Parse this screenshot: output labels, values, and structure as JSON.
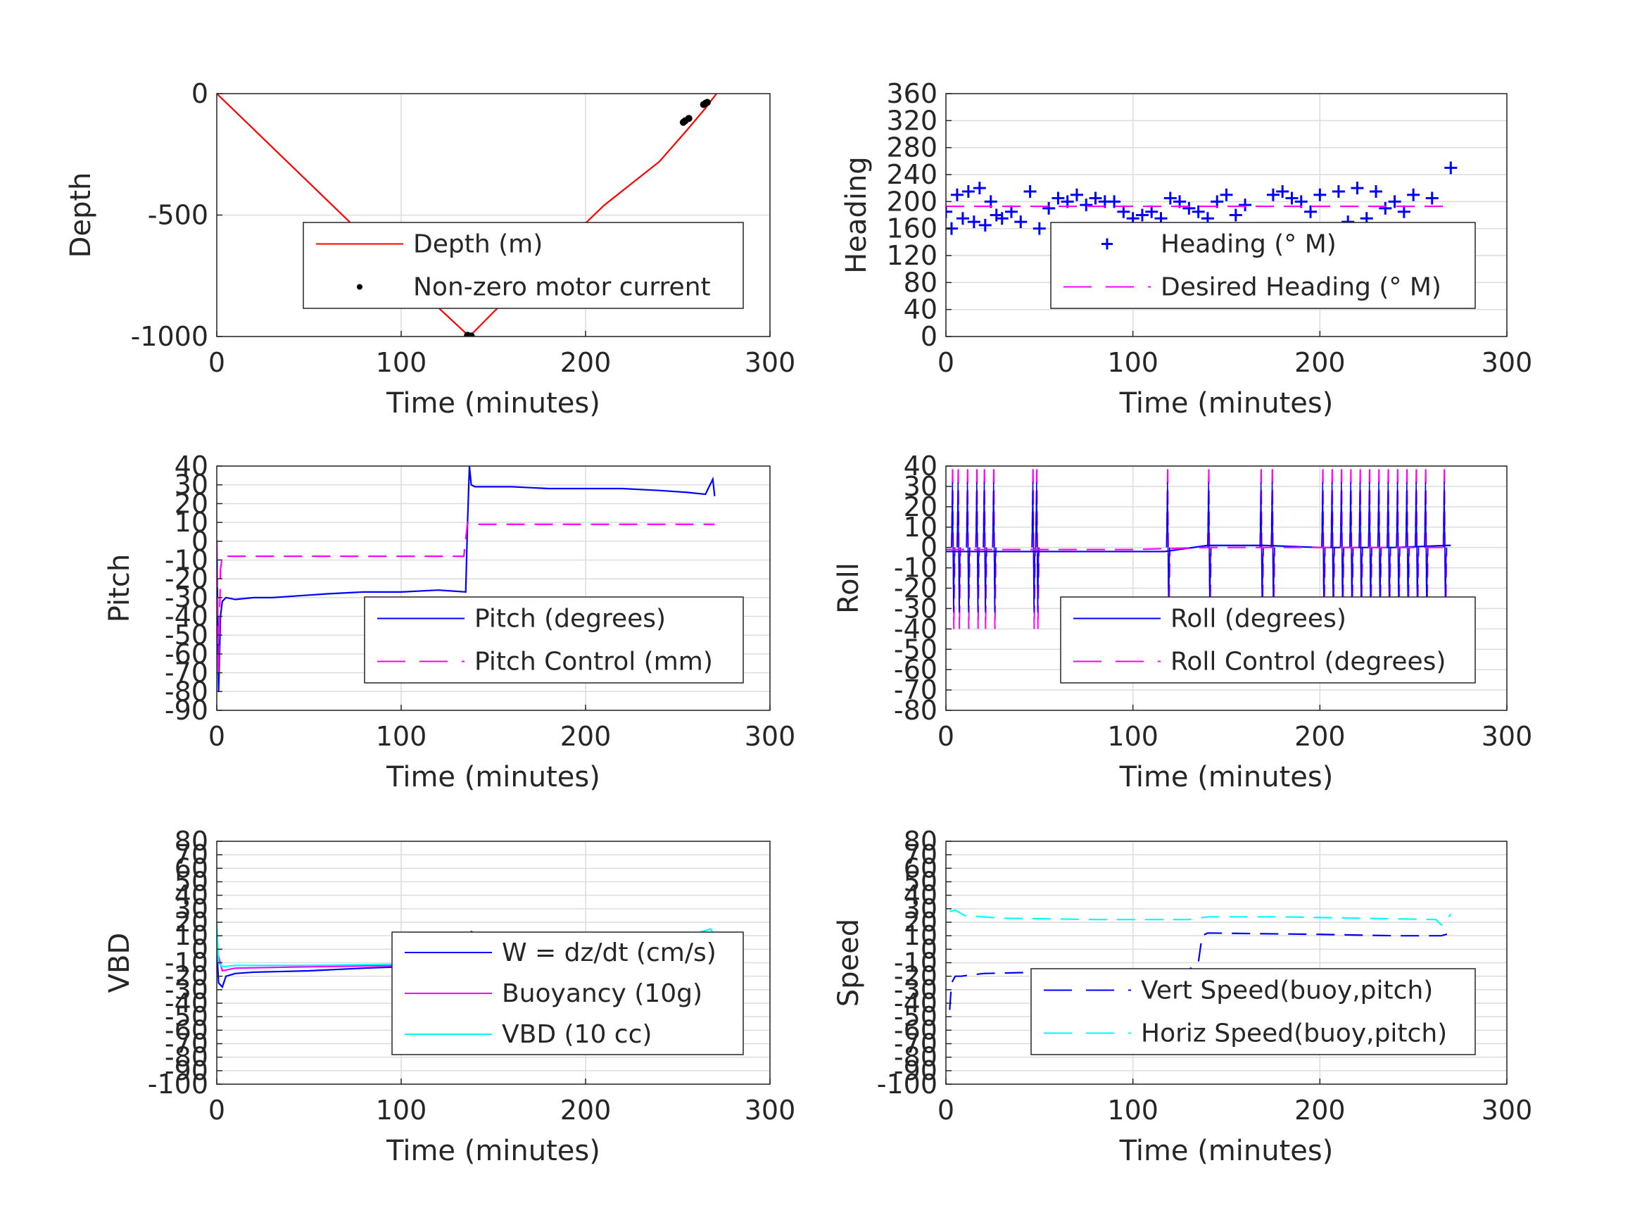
{
  "chart_data": [
    {
      "id": "depth",
      "type": "line",
      "xlabel": "Time (minutes)",
      "ylabel": "Depth",
      "xlim": [
        0,
        300
      ],
      "ylim": [
        -1000,
        0
      ],
      "xticks": [
        0,
        100,
        200,
        300
      ],
      "yticks": [
        -1000,
        -500,
        0
      ],
      "grid": true,
      "legend_position": "center-right",
      "series": [
        {
          "name": "Depth (m)",
          "style": "solid",
          "color": "#ff0000",
          "x": [
            0,
            30,
            60,
            90,
            120,
            137,
            150,
            180,
            210,
            240,
            255,
            265,
            271
          ],
          "y": [
            0,
            -220,
            -440,
            -660,
            -880,
            -1000,
            -900,
            -680,
            -460,
            -280,
            -150,
            -60,
            0
          ]
        },
        {
          "name": "Non-zero motor current",
          "style": "dots",
          "color": "#000000",
          "x": [
            136,
            137,
            138,
            253,
            254,
            256,
            264,
            265,
            266
          ],
          "y": [
            -995,
            -1000,
            -998,
            -118,
            -112,
            -102,
            -45,
            -40,
            -36
          ]
        }
      ]
    },
    {
      "id": "heading",
      "type": "scatter",
      "xlabel": "Time (minutes)",
      "ylabel": "Heading",
      "xlim": [
        0,
        300
      ],
      "ylim": [
        0,
        360
      ],
      "xticks": [
        0,
        100,
        200,
        300
      ],
      "yticks": [
        0,
        40,
        80,
        120,
        160,
        200,
        240,
        280,
        320,
        360
      ],
      "grid": true,
      "legend_position": "center-right",
      "series": [
        {
          "name": "Heading (° M)",
          "style": "plus",
          "color": "#0000ff",
          "x": [
            0,
            3,
            6,
            9,
            12,
            15,
            18,
            21,
            24,
            27,
            30,
            35,
            40,
            45,
            50,
            55,
            60,
            65,
            70,
            75,
            80,
            85,
            90,
            95,
            100,
            105,
            110,
            115,
            120,
            125,
            130,
            135,
            140,
            145,
            150,
            155,
            160,
            165,
            170,
            172,
            175,
            180,
            185,
            190,
            195,
            200,
            205,
            210,
            215,
            220,
            225,
            230,
            235,
            240,
            245,
            250,
            255,
            260,
            265,
            270
          ],
          "y": [
            185,
            160,
            210,
            175,
            215,
            170,
            220,
            165,
            200,
            180,
            175,
            185,
            170,
            215,
            160,
            190,
            205,
            200,
            210,
            195,
            205,
            200,
            200,
            185,
            175,
            180,
            185,
            175,
            205,
            200,
            190,
            185,
            175,
            200,
            210,
            180,
            195,
            160,
            140,
            120,
            210,
            215,
            205,
            200,
            185,
            210,
            160,
            215,
            170,
            220,
            175,
            215,
            190,
            200,
            185,
            210,
            150,
            205,
            160,
            250
          ]
        },
        {
          "name": "Desired Heading (° M)",
          "style": "dashed",
          "color": "#ff00ff",
          "x": [
            0,
            270
          ],
          "y": [
            193,
            193
          ]
        }
      ]
    },
    {
      "id": "pitch",
      "type": "line",
      "xlabel": "Time (minutes)",
      "ylabel": "Pitch",
      "xlim": [
        0,
        300
      ],
      "ylim": [
        -90,
        40
      ],
      "xticks": [
        0,
        100,
        200,
        300
      ],
      "yticks": [
        -90,
        -80,
        -70,
        -60,
        -50,
        -40,
        -30,
        -20,
        -10,
        0,
        10,
        20,
        30,
        40
      ],
      "grid": true,
      "legend_position": "lower-right",
      "series": [
        {
          "name": "Pitch (degrees)",
          "style": "solid",
          "color": "#0000ff",
          "x": [
            0,
            1,
            2,
            3,
            5,
            10,
            20,
            30,
            45,
            60,
            80,
            100,
            120,
            135,
            136,
            137,
            138,
            140,
            160,
            180,
            200,
            220,
            240,
            255,
            265,
            269,
            270
          ],
          "y": [
            0,
            -80,
            -40,
            -32,
            -30,
            -31,
            -30,
            -30,
            -29,
            -28,
            -27,
            -27,
            -26,
            -27,
            10,
            40,
            30,
            29,
            29,
            28,
            28,
            28,
            27,
            26,
            25,
            33,
            24
          ]
        },
        {
          "name": "Pitch Control (mm)",
          "style": "dashed",
          "color": "#ff00ff",
          "x": [
            0,
            1,
            2,
            3,
            10,
            50,
            100,
            134,
            136,
            138,
            150,
            200,
            250,
            270
          ],
          "y": [
            0,
            -70,
            -15,
            -8,
            -8,
            -8,
            -8,
            -8,
            10,
            9,
            9,
            9,
            9,
            9
          ]
        }
      ]
    },
    {
      "id": "roll",
      "type": "line",
      "xlabel": "Time (minutes)",
      "ylabel": "Roll",
      "xlim": [
        0,
        300
      ],
      "ylim": [
        -80,
        40
      ],
      "xticks": [
        0,
        100,
        200,
        300
      ],
      "yticks": [
        -80,
        -70,
        -60,
        -50,
        -40,
        -30,
        -20,
        -10,
        0,
        10,
        20,
        30,
        40
      ],
      "grid": true,
      "legend_position": "lower-right",
      "spike_times": [
        3,
        6,
        11,
        16,
        20,
        25,
        46,
        48,
        118,
        140,
        168,
        174,
        201,
        206,
        211,
        216,
        221,
        226,
        231,
        236,
        241,
        246,
        251,
        256,
        266
      ],
      "series": [
        {
          "name": "Roll (degrees)",
          "style": "solid",
          "color": "#0000ff",
          "x": [
            0,
            50,
            100,
            117,
            140,
            170,
            200,
            240,
            268,
            270
          ],
          "y": [
            -2,
            -2,
            -2,
            -2,
            1,
            1,
            0,
            0,
            1,
            1
          ]
        },
        {
          "name": "Roll Control (degrees)",
          "style": "dashed",
          "color": "#ff00ff",
          "x": [
            0,
            50,
            100,
            140,
            200,
            270
          ],
          "y": [
            -1,
            -1,
            -1,
            0,
            0,
            0
          ]
        }
      ]
    },
    {
      "id": "vbd",
      "type": "line",
      "xlabel": "Time (minutes)",
      "ylabel": "VBD",
      "xlim": [
        0,
        300
      ],
      "ylim": [
        -100,
        80
      ],
      "xticks": [
        0,
        100,
        200,
        300
      ],
      "yticks": [
        -100,
        -90,
        -80,
        -70,
        -60,
        -50,
        -40,
        -30,
        -20,
        -10,
        0,
        10,
        20,
        30,
        40,
        50,
        60,
        70,
        80
      ],
      "grid": true,
      "legend_position": "lower-right",
      "series": [
        {
          "name": "W = dz/dt (cm/s)",
          "style": "solid",
          "color": "#0000ff",
          "x": [
            0,
            1,
            3,
            5,
            10,
            20,
            50,
            80,
            100,
            120,
            135,
            136,
            138,
            140,
            160,
            200,
            240,
            260,
            270
          ],
          "y": [
            0,
            -25,
            -28,
            -20,
            -18,
            -17,
            -16,
            -14,
            -13,
            -12,
            -11,
            5,
            13,
            12,
            11,
            10,
            10,
            9,
            10
          ]
        },
        {
          "name": "Buoyancy (10g)",
          "style": "solid",
          "color": "#ff00ff",
          "x": [
            0,
            3,
            10,
            50,
            100,
            135,
            137,
            150,
            200,
            250,
            270
          ],
          "y": [
            0,
            -16,
            -14,
            -13,
            -12,
            -11,
            8,
            8,
            8,
            8,
            8
          ]
        },
        {
          "name": "VBD (10 cc)",
          "style": "solid",
          "color": "#00ffff",
          "x": [
            0,
            1,
            3,
            10,
            50,
            100,
            135,
            137,
            150,
            200,
            250,
            268,
            270
          ],
          "y": [
            20,
            -10,
            -13,
            -12,
            -12,
            -11,
            -11,
            9,
            9,
            9,
            8,
            15,
            8
          ]
        }
      ]
    },
    {
      "id": "speed",
      "type": "line",
      "xlabel": "Time (minutes)",
      "ylabel": "Speed",
      "xlim": [
        0,
        300
      ],
      "ylim": [
        -100,
        80
      ],
      "xticks": [
        0,
        100,
        200,
        300
      ],
      "yticks": [
        -100,
        -90,
        -80,
        -70,
        -60,
        -50,
        -40,
        -30,
        -20,
        -10,
        0,
        10,
        20,
        30,
        40,
        50,
        60,
        70,
        80
      ],
      "grid": true,
      "legend_position": "lower-right",
      "series": [
        {
          "name": "Vert Speed(buoy,pitch)",
          "style": "dashed",
          "color": "#0000ff",
          "x": [
            2,
            3,
            5,
            8,
            20,
            50,
            100,
            130,
            135,
            137,
            140,
            200,
            240,
            265,
            270
          ],
          "y": [
            -45,
            -25,
            -20,
            -20,
            -18,
            -17,
            -16,
            -15,
            -10,
            10,
            12,
            11,
            10,
            10,
            12
          ]
        },
        {
          "name": "Horiz Speed(buoy,pitch)",
          "style": "dashed",
          "color": "#00ffff",
          "x": [
            2,
            5,
            10,
            30,
            80,
            130,
            140,
            180,
            220,
            262,
            265,
            268,
            270
          ],
          "y": [
            28,
            29,
            25,
            23,
            22,
            22,
            24,
            24,
            23,
            22,
            18,
            22,
            26
          ]
        }
      ]
    }
  ]
}
